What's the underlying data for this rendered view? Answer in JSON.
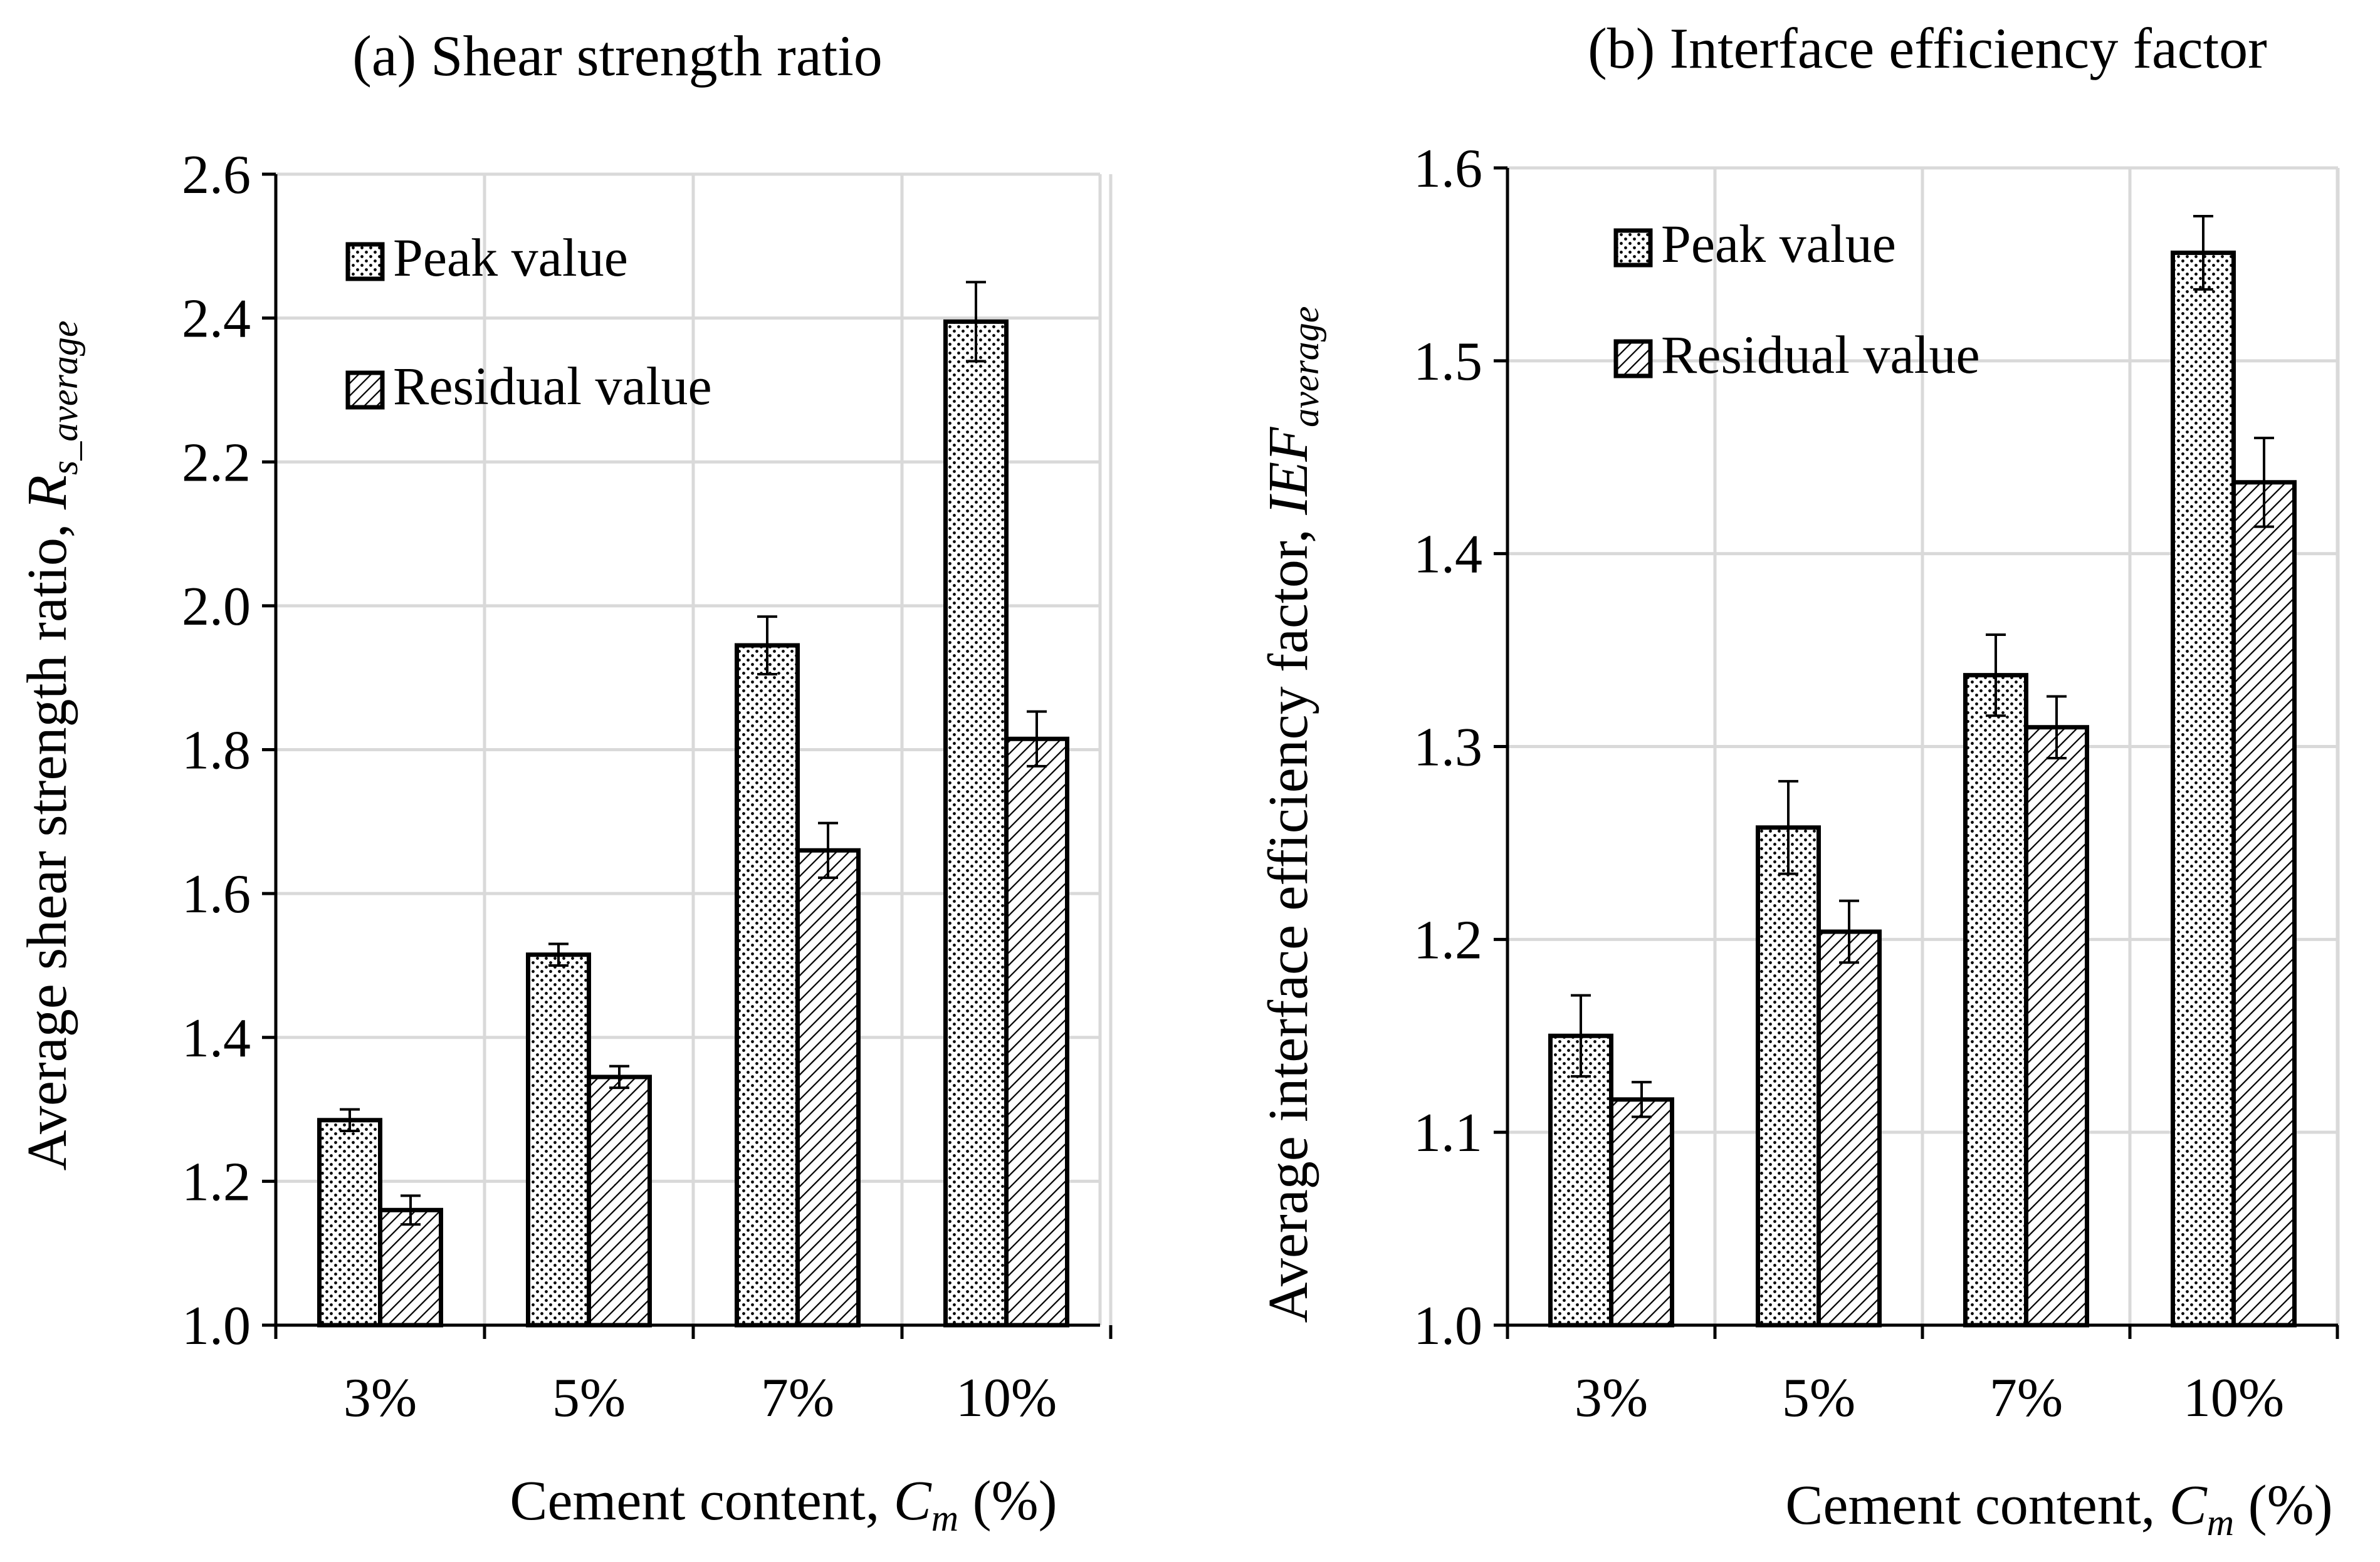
{
  "chart_data": [
    {
      "type": "bar",
      "title": "(a) Shear strength ratio",
      "xlabel": {
        "text": "Cement content, ",
        "var": "C",
        "sub": "m",
        "unit": " (%)"
      },
      "ylabel": {
        "text": "Average shear strength ratio, ",
        "var": "R",
        "sub": "s_average"
      },
      "categories": [
        "3%",
        "5%",
        "7%",
        "10%"
      ],
      "ylim": [
        1.0,
        2.6
      ],
      "yticks": [
        "1.0",
        "1.2",
        "1.4",
        "1.6",
        "1.8",
        "2.0",
        "2.2",
        "2.4",
        "2.6"
      ],
      "grid": true,
      "legend_position": "top-left",
      "series": [
        {
          "name": "Peak value",
          "pattern": "dots",
          "values": [
            1.285,
            1.515,
            1.945,
            2.395
          ],
          "errors": [
            0.015,
            0.015,
            0.04,
            0.055
          ]
        },
        {
          "name": "Residual value",
          "pattern": "hatch",
          "values": [
            1.16,
            1.345,
            1.66,
            1.815
          ],
          "errors": [
            0.02,
            0.015,
            0.038,
            0.038
          ]
        }
      ]
    },
    {
      "type": "bar",
      "title": "(b) Interface efficiency factor",
      "xlabel": {
        "text": "Cement content, ",
        "var": "C",
        "sub": "m",
        "unit": " (%)"
      },
      "ylabel": {
        "text": "Average interface efficiency factor, ",
        "var": "IEF",
        "sub": "average"
      },
      "categories": [
        "3%",
        "5%",
        "7%",
        "10%"
      ],
      "ylim": [
        1.0,
        1.6
      ],
      "yticks": [
        "1.0",
        "1.1",
        "1.2",
        "1.3",
        "1.4",
        "1.5",
        "1.6"
      ],
      "grid": true,
      "legend_position": "top-left",
      "series": [
        {
          "name": "Peak value",
          "pattern": "dots",
          "values": [
            1.15,
            1.258,
            1.337,
            1.556
          ],
          "errors": [
            0.021,
            0.024,
            0.021,
            0.019
          ]
        },
        {
          "name": "Residual value",
          "pattern": "hatch",
          "values": [
            1.117,
            1.204,
            1.31,
            1.437
          ],
          "errors": [
            0.009,
            0.016,
            0.016,
            0.023
          ]
        }
      ]
    }
  ]
}
